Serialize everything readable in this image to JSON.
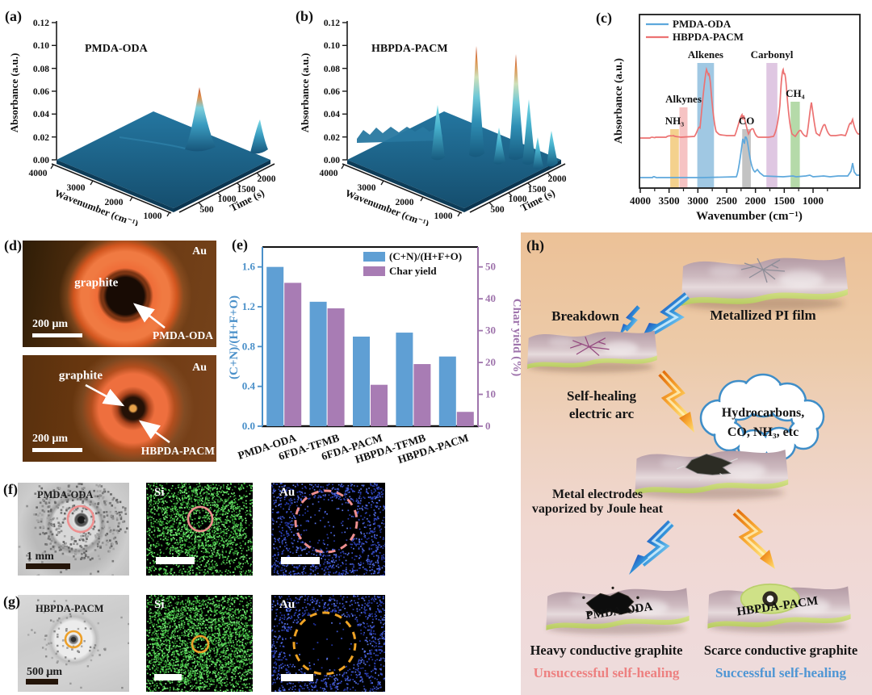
{
  "figure": {
    "panel_labels": {
      "a": "(a)",
      "b": "(b)",
      "c": "(c)",
      "d": "(d)",
      "e": "(e)",
      "f": "(f)",
      "g": "(g)",
      "h": "(h)"
    }
  },
  "chart_data": [
    {
      "panel": "a",
      "type": "surface",
      "sample": "PMDA-ODA",
      "xlabel": "Wavenumber (cm⁻¹)",
      "ylabel": "Time (s)",
      "zlabel": "Absorbance (a.u.)",
      "xticks": [
        "4000",
        "3000",
        "2000",
        "1000"
      ],
      "yticks": [
        "500",
        "1000",
        "1500",
        "2000"
      ],
      "zticks": [
        "0.00",
        "0.02",
        "0.04",
        "0.06",
        "0.08",
        "0.10",
        "0.12"
      ],
      "zlim": [
        0,
        0.12
      ],
      "peaks": [
        {
          "wavenumber": 2350,
          "time": 1500,
          "max_absorbance": 0.062
        },
        {
          "wavenumber": 670,
          "time": 2000,
          "max_absorbance": 0.025
        }
      ]
    },
    {
      "panel": "b",
      "type": "surface",
      "sample": "HBPDA-PACM",
      "xlabel": "Wavenumber (cm⁻¹)",
      "ylabel": "Time (s)",
      "zlabel": "Absorbance (a.u.)",
      "xticks": [
        "4000",
        "3000",
        "2000",
        "1000"
      ],
      "yticks": [
        "500",
        "1000",
        "1500",
        "2000"
      ],
      "zticks": [
        "0.00",
        "0.02",
        "0.04",
        "0.06",
        "0.08",
        "0.10",
        "0.12"
      ],
      "zlim": [
        0,
        0.12
      ],
      "peaks": [
        {
          "wavenumber": 2930,
          "time": 950,
          "max_absorbance": 0.1
        },
        {
          "wavenumber": 2350,
          "time": 950,
          "max_absorbance": 0.095
        },
        {
          "wavenumber": 2930,
          "time": 1500,
          "max_absorbance": 0.055
        },
        {
          "wavenumber": 1730,
          "time": 1000,
          "max_absorbance": 0.06
        },
        {
          "wavenumber": 1350,
          "time": 1050,
          "max_absorbance": 0.035
        },
        {
          "wavenumber": 650,
          "time": 1100,
          "max_absorbance": 0.03
        }
      ]
    },
    {
      "panel": "c",
      "type": "line",
      "xlabel": "Wavenumber (cm⁻¹)",
      "ylabel": "Absorbance (a.u.)",
      "xticks": [
        "4000",
        "3500",
        "3000",
        "2500",
        "2000",
        "1500",
        "1000"
      ],
      "x_range": [
        4000,
        400
      ],
      "legend_position": "top-left",
      "series": [
        {
          "name": "PMDA-ODA",
          "color": "#5da8dc",
          "main_peaks_cm1": [
            2350,
            2170,
            670
          ]
        },
        {
          "name": "HBPDA-PACM",
          "color": "#ec7272",
          "main_peaks_cm1": [
            2930,
            2350,
            2170,
            1730,
            1460,
            1330,
            1170,
            670
          ]
        }
      ],
      "bands": [
        {
          "label": "NH₃",
          "range_cm1": [
            3480,
            3330
          ],
          "color": "#f2c979"
        },
        {
          "label": "Alkynes",
          "range_cm1": [
            3320,
            3180
          ],
          "color": "#f4b9b9"
        },
        {
          "label": "Alkenes",
          "range_cm1": [
            3010,
            2720
          ],
          "color": "#8fbede"
        },
        {
          "label": "CO",
          "range_cm1": [
            2230,
            2080
          ],
          "color": "#b9b9b9"
        },
        {
          "label": "Carbonyl",
          "range_cm1": [
            1810,
            1620
          ],
          "color": "#d9bddd"
        },
        {
          "label": "CH₄",
          "range_cm1": [
            1390,
            1230
          ],
          "color": "#a8d49a"
        }
      ]
    },
    {
      "panel": "e",
      "type": "bar",
      "categories": [
        "PMDA-ODA",
        "6FDA-TFMB",
        "6FDA-PACM",
        "HBPDA-TFMB",
        "HBPDA-PACM"
      ],
      "series": [
        {
          "name": "(C+N)/(H+F+O)",
          "axis": "left",
          "color": "#5f9fd4",
          "values": [
            1.6,
            1.25,
            0.9,
            0.94,
            0.7
          ]
        },
        {
          "name": "Char yield",
          "axis": "right",
          "color": "#a87cb4",
          "values": [
            45,
            37,
            13,
            19.5,
            4.5
          ]
        }
      ],
      "left_axis": {
        "label": "(C+N)/(H+F+O)",
        "color": "#4a90c9",
        "ticks": [
          0.0,
          0.4,
          0.8,
          1.2,
          1.6
        ],
        "max": 1.8
      },
      "right_axis": {
        "label": "Char yield (%)",
        "color": "#9f74ac",
        "ticks": [
          0,
          10,
          20,
          30,
          40,
          50
        ],
        "max": 56.25
      },
      "grid": false
    }
  ],
  "panel_d": {
    "top": {
      "center_label": "graphite",
      "corner_label": "Au",
      "sample_label": "PMDA-ODA",
      "scale_bar": "200 μm"
    },
    "bottom": {
      "center_label": "graphite",
      "corner_label": "Au",
      "sample_label": "HBPDA-PACM",
      "scale_bar": "200 μm"
    }
  },
  "panel_f": {
    "sample": "PMDA-ODA",
    "scale_bar": "1 mm",
    "si_label": "Si",
    "au_label": "Au"
  },
  "panel_g": {
    "sample": "HBPDA-PACM",
    "scale_bar": "500 μm",
    "si_label": "Si",
    "au_label": "Au"
  },
  "panel_h": {
    "film_top": "Metallized PI film",
    "breakdown": "Breakdown",
    "arc_line1": "Self-healing",
    "arc_line2": "electric arc",
    "cloud_line1": "Hydrocarbons,",
    "cloud_line2": "CO, NH₃, etc",
    "vapor_line1": "Metal electrodes",
    "vapor_line2": "vaporized by Joule heat",
    "film_left": "PMDA-ODA",
    "film_right": "HBPDA-PACM",
    "result_left": "Heavy conductive graphite",
    "result_right": "Scarce conductive graphite",
    "outcome_left": "Unsuccessful self-healing",
    "outcome_right": "Successful self-healing",
    "outcome_left_color": "#ed8080",
    "outcome_right_color": "#4f96d4"
  }
}
